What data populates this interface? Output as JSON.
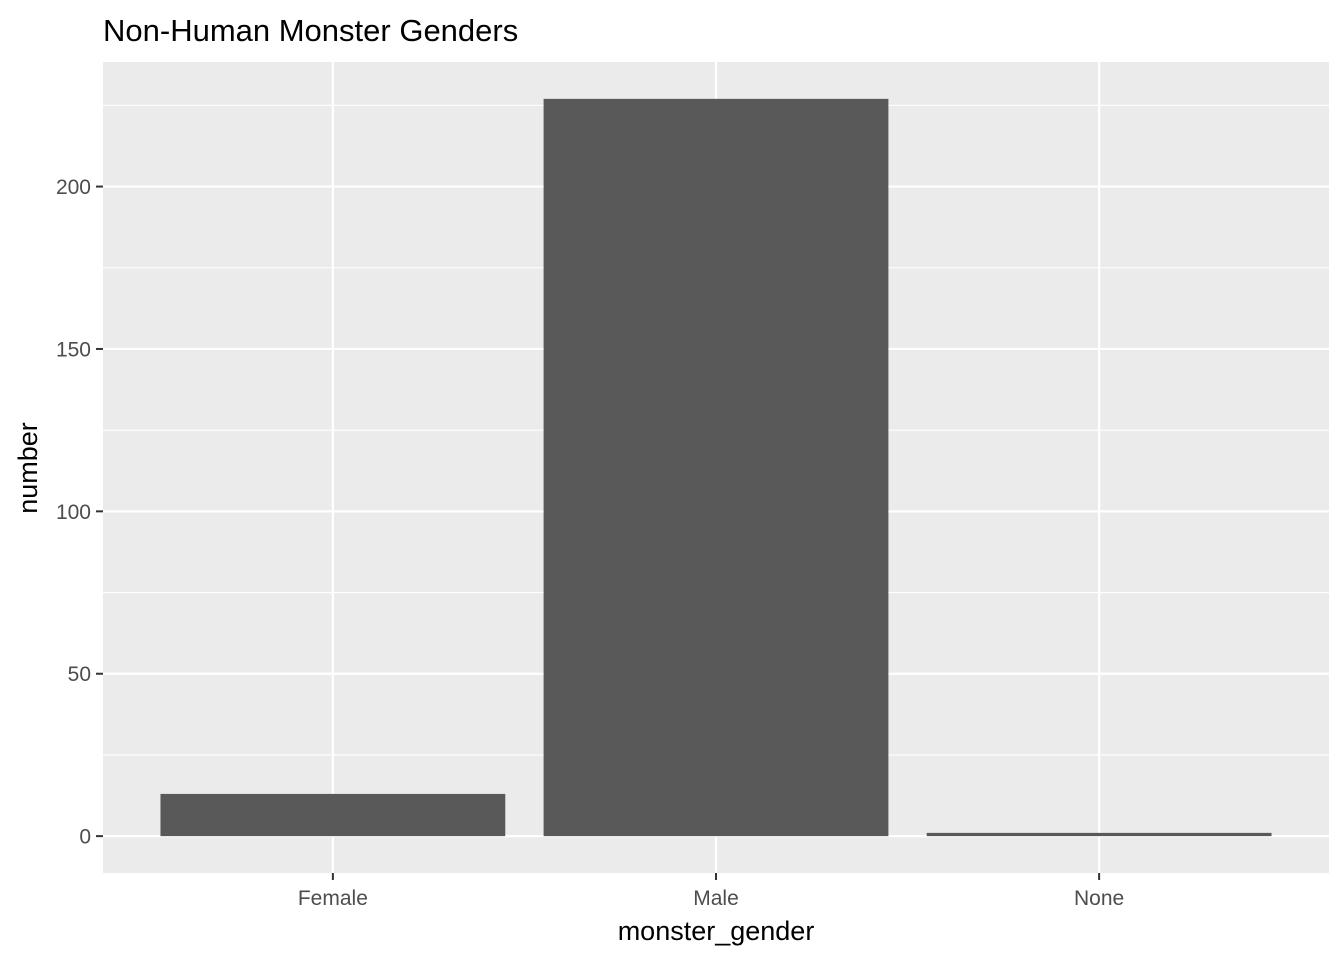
{
  "chart_data": {
    "type": "bar",
    "title": "Non-Human Monster Genders",
    "xlabel": "monster_gender",
    "ylabel": "number",
    "categories": [
      "Female",
      "Male",
      "None"
    ],
    "values": [
      13,
      227,
      1
    ],
    "ylim": [
      -11.35,
      238.35
    ],
    "yticks": [
      0,
      50,
      100,
      150,
      200
    ],
    "grid": true,
    "legend": "none",
    "colors": {
      "panel_background": "#ebebeb",
      "grid": "#ffffff",
      "bar_fill": "#595959",
      "tick_text": "#4d4d4d",
      "tick_mark": "#333333"
    }
  }
}
